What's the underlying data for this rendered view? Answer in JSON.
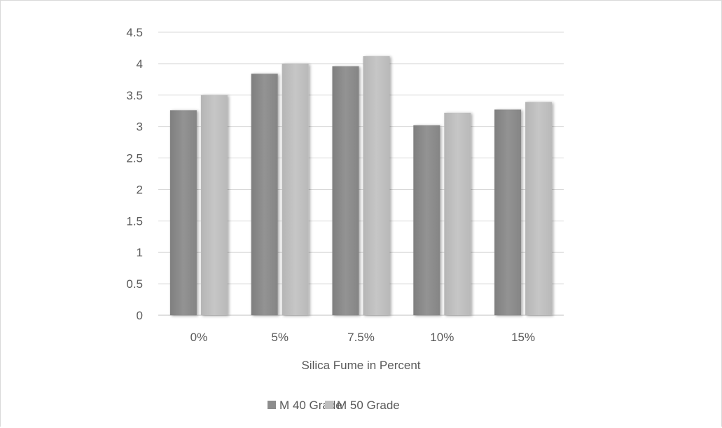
{
  "chart_data": {
    "type": "bar",
    "categories": [
      "0%",
      "5%",
      "7.5%",
      "10%",
      "15%"
    ],
    "series": [
      {
        "name": "M 40 Grade",
        "values": [
          3.26,
          3.84,
          3.96,
          3.02,
          3.27
        ],
        "color": "#8c8c8c"
      },
      {
        "name": "M 50 Grade",
        "values": [
          3.5,
          4.0,
          4.12,
          3.22,
          3.39
        ],
        "color": "#bfbfbf"
      }
    ],
    "xlabel": "Silica Fume in Percent",
    "ylabel": "",
    "ylim": [
      0,
      4.5
    ],
    "yticks": [
      "0",
      "0.5",
      "1",
      "1.5",
      "2",
      "2.5",
      "3",
      "3.5",
      "4",
      "4.5"
    ],
    "grid": true,
    "legend": "bottom"
  }
}
